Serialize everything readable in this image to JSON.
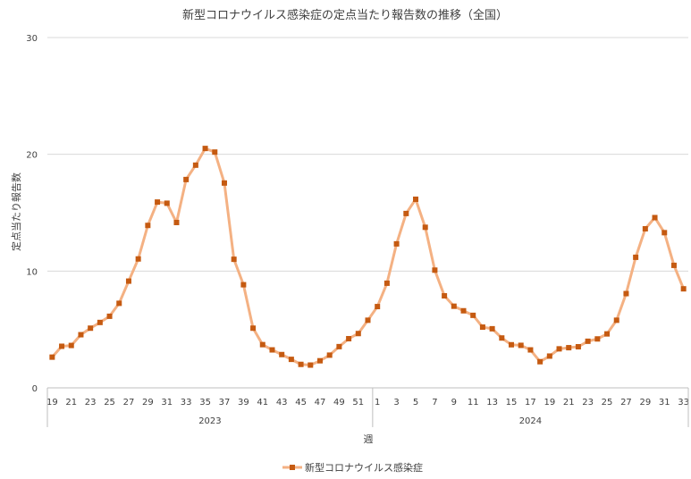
{
  "chart_data": {
    "type": "line",
    "title": "新型コロナウイルス感染症の定点当たり報告数の推移（全国）",
    "xlabel": "週",
    "ylabel": "定点当たり報告数",
    "ylim": [
      0,
      30
    ],
    "yticks": [
      "0",
      "10",
      "20",
      "30"
    ],
    "grid": true,
    "legend_position": "bottom",
    "colors": {
      "line": "#F4B183",
      "marker": "#C55A11",
      "grid": "#D9D9D9",
      "axis": "#BFBFBF"
    },
    "year_groups": [
      {
        "label": "2023",
        "start_index": 0,
        "count": 34
      },
      {
        "label": "2024",
        "start_index": 34,
        "count": 33
      }
    ],
    "x_tick_labels": [
      "19",
      "21",
      "23",
      "25",
      "27",
      "29",
      "31",
      "33",
      "35",
      "37",
      "39",
      "41",
      "43",
      "45",
      "47",
      "49",
      "51",
      "1",
      "3",
      "5",
      "7",
      "9",
      "11",
      "13",
      "15",
      "17",
      "19",
      "21",
      "23",
      "25",
      "27",
      "29",
      "31",
      "33"
    ],
    "series": [
      {
        "name": "新型コロナウイルス感染症",
        "weeks": [
          "2023-19",
          "2023-20",
          "2023-21",
          "2023-22",
          "2023-23",
          "2023-24",
          "2023-25",
          "2023-26",
          "2023-27",
          "2023-28",
          "2023-29",
          "2023-30",
          "2023-31",
          "2023-32",
          "2023-33",
          "2023-34",
          "2023-35",
          "2023-36",
          "2023-37",
          "2023-38",
          "2023-39",
          "2023-40",
          "2023-41",
          "2023-42",
          "2023-43",
          "2023-44",
          "2023-45",
          "2023-46",
          "2023-47",
          "2023-48",
          "2023-49",
          "2023-50",
          "2023-51",
          "2023-52",
          "2024-1",
          "2024-2",
          "2024-3",
          "2024-4",
          "2024-5",
          "2024-6",
          "2024-7",
          "2024-8",
          "2024-9",
          "2024-10",
          "2024-11",
          "2024-12",
          "2024-13",
          "2024-14",
          "2024-15",
          "2024-16",
          "2024-17",
          "2024-18",
          "2024-19",
          "2024-20",
          "2024-21",
          "2024-22",
          "2024-23",
          "2024-24",
          "2024-25",
          "2024-26",
          "2024-27",
          "2024-28",
          "2024-29",
          "2024-30",
          "2024-31",
          "2024-32",
          "2024-33"
        ],
        "values": [
          2.63,
          3.56,
          3.63,
          4.55,
          5.11,
          5.6,
          6.13,
          7.24,
          9.14,
          11.04,
          13.91,
          15.91,
          15.81,
          14.16,
          17.84,
          19.07,
          20.5,
          20.19,
          17.54,
          11.01,
          8.83,
          5.11,
          3.7,
          3.25,
          2.85,
          2.44,
          2.01,
          1.95,
          2.32,
          2.8,
          3.53,
          4.21,
          4.65,
          5.79,
          6.96,
          8.96,
          12.33,
          14.93,
          16.15,
          13.75,
          10.08,
          7.88,
          6.99,
          6.6,
          6.21,
          5.2,
          5.06,
          4.27,
          3.69,
          3.64,
          3.25,
          2.24,
          2.72,
          3.34,
          3.44,
          3.52,
          3.99,
          4.19,
          4.62,
          5.79,
          8.07,
          11.18,
          13.62,
          14.58,
          13.29,
          10.49,
          8.48
        ]
      }
    ]
  }
}
